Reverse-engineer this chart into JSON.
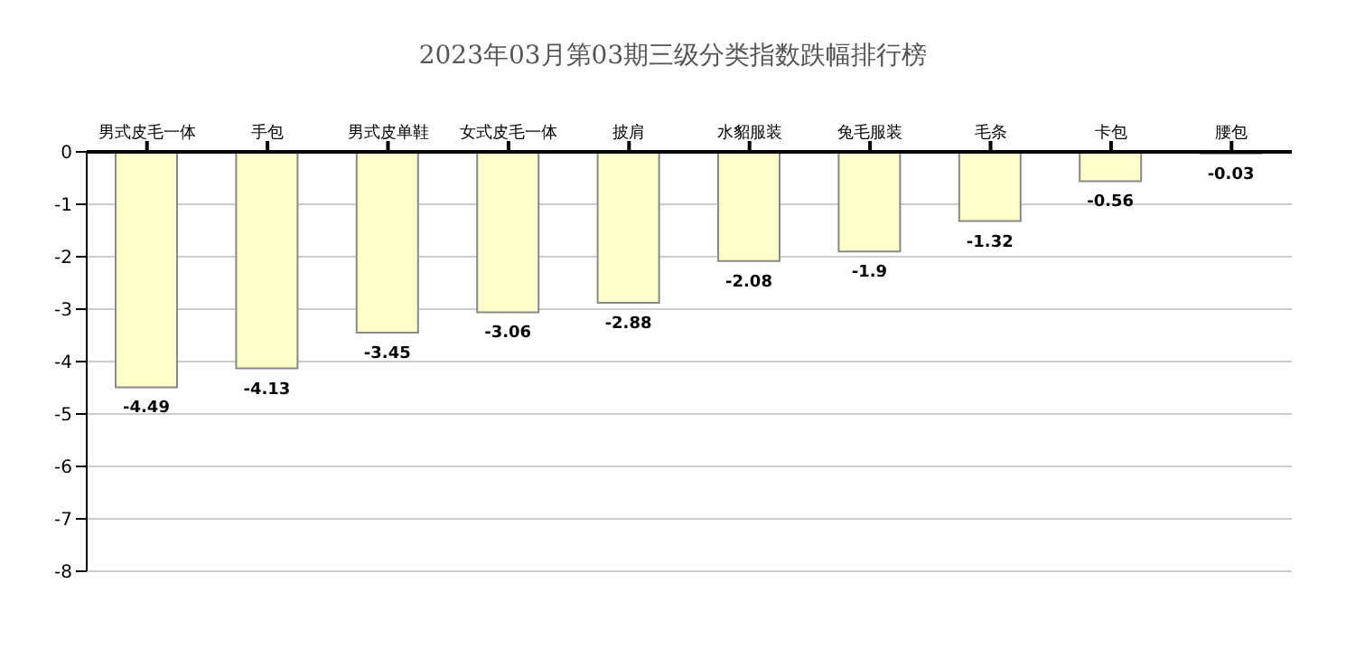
{
  "chart_data": {
    "type": "bar",
    "title": "2023年03月第03期三级分类指数跌幅排行榜",
    "categories": [
      "男式皮毛一体",
      "手包",
      "男式皮单鞋",
      "女式皮毛一体",
      "披肩",
      "水貂服装",
      "兔毛服装",
      "毛条",
      "卡包",
      "腰包"
    ],
    "values": [
      -4.49,
      -4.13,
      -3.45,
      -3.06,
      -2.88,
      -2.08,
      -1.9,
      -1.32,
      -0.56,
      -0.03
    ],
    "color": "#ffffcc",
    "ylim": [
      -8,
      0
    ],
    "yticks": [
      0,
      -1,
      -2,
      -3,
      -4,
      -5,
      -6,
      -7,
      -8
    ],
    "grid": "y",
    "data_labels": true,
    "legend": false
  }
}
